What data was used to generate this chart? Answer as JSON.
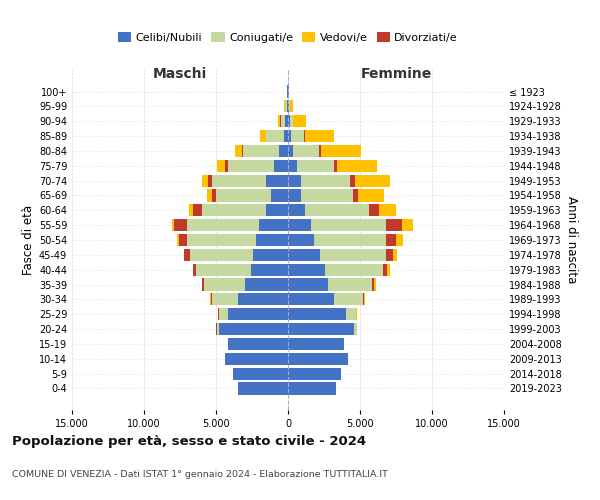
{
  "age_groups": [
    "0-4",
    "5-9",
    "10-14",
    "15-19",
    "20-24",
    "25-29",
    "30-34",
    "35-39",
    "40-44",
    "45-49",
    "50-54",
    "55-59",
    "60-64",
    "65-69",
    "70-74",
    "75-79",
    "80-84",
    "85-89",
    "90-94",
    "95-99",
    "100+"
  ],
  "birth_years": [
    "2019-2023",
    "2014-2018",
    "2009-2013",
    "2004-2008",
    "1999-2003",
    "1994-1998",
    "1989-1993",
    "1984-1988",
    "1979-1983",
    "1974-1978",
    "1969-1973",
    "1964-1968",
    "1959-1963",
    "1954-1958",
    "1949-1953",
    "1944-1948",
    "1939-1943",
    "1934-1938",
    "1929-1933",
    "1924-1928",
    "≤ 1923"
  ],
  "colors": {
    "celibi": "#4472c4",
    "coniugati": "#c5d9a0",
    "vedovi": "#ffc000",
    "divorziati": "#c0392b"
  },
  "maschi": {
    "celibi": [
      3500,
      3800,
      4400,
      4200,
      4800,
      4200,
      3500,
      3000,
      2600,
      2400,
      2200,
      2000,
      1500,
      1200,
      1500,
      1000,
      600,
      300,
      200,
      100,
      50
    ],
    "coniugati": [
      0,
      0,
      0,
      0,
      150,
      600,
      1800,
      2800,
      3800,
      4400,
      4800,
      5000,
      4500,
      3800,
      3800,
      3200,
      2500,
      1200,
      300,
      80,
      20
    ],
    "vedovi": [
      0,
      0,
      0,
      0,
      0,
      0,
      10,
      20,
      30,
      50,
      80,
      150,
      250,
      350,
      400,
      500,
      500,
      400,
      180,
      50,
      10
    ],
    "divorziati": [
      0,
      0,
      0,
      0,
      20,
      50,
      80,
      150,
      200,
      400,
      600,
      900,
      600,
      300,
      250,
      200,
      80,
      60,
      30,
      20,
      5
    ]
  },
  "femmine": {
    "celibi": [
      3300,
      3700,
      4200,
      3900,
      4600,
      4000,
      3200,
      2800,
      2600,
      2200,
      1800,
      1600,
      1200,
      900,
      900,
      600,
      350,
      200,
      150,
      100,
      50
    ],
    "coniugati": [
      0,
      0,
      0,
      0,
      200,
      700,
      2000,
      3000,
      4000,
      4600,
      5000,
      5200,
      4400,
      3600,
      3400,
      2600,
      1800,
      900,
      200,
      60,
      15
    ],
    "vedovi": [
      0,
      0,
      0,
      0,
      5,
      10,
      40,
      80,
      150,
      300,
      500,
      800,
      1200,
      1800,
      2400,
      2800,
      2800,
      2000,
      900,
      200,
      30
    ],
    "divorziati": [
      0,
      0,
      0,
      0,
      20,
      50,
      100,
      200,
      300,
      500,
      700,
      1100,
      700,
      350,
      350,
      200,
      150,
      80,
      30,
      10,
      3
    ]
  },
  "xlim": 15000,
  "title": "Popolazione per età, sesso e stato civile - 2024",
  "subtitle": "COMUNE DI VENEZIA - Dati ISTAT 1° gennaio 2024 - Elaborazione TUTTITALIA.IT",
  "ylabel_left": "Fasce di età",
  "ylabel_right": "Anni di nascita",
  "xlabel_left": "Maschi",
  "xlabel_right": "Femmine",
  "background_color": "#ffffff",
  "grid_color": "#cccccc"
}
